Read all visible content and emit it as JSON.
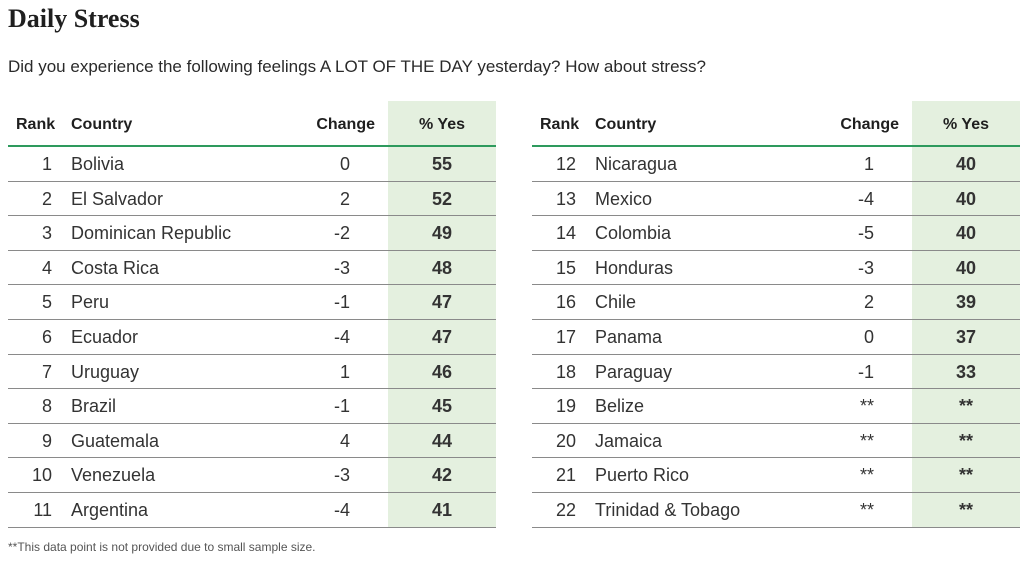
{
  "title": "Daily Stress",
  "subtitle": "Did you experience the following feelings A LOT OF THE DAY yesterday? How about stress?",
  "headers": {
    "rank": "Rank",
    "country": "Country",
    "change": "Change",
    "pct": "% Yes"
  },
  "footnote": "**This data point is not provided due to small sample size.",
  "colors": {
    "highlight": "#e4f0df",
    "header_rule": "#2e9a5d"
  },
  "chart_data": {
    "type": "table",
    "columns": [
      "Rank",
      "Country",
      "Change",
      "% Yes"
    ],
    "rows": [
      {
        "rank": "1",
        "country": "Bolivia",
        "change": "0",
        "pct": "55"
      },
      {
        "rank": "2",
        "country": "El Salvador",
        "change": "2",
        "pct": "52"
      },
      {
        "rank": "3",
        "country": "Dominican Republic",
        "change": "-2",
        "pct": "49"
      },
      {
        "rank": "4",
        "country": "Costa Rica",
        "change": "-3",
        "pct": "48"
      },
      {
        "rank": "5",
        "country": "Peru",
        "change": "-1",
        "pct": "47"
      },
      {
        "rank": "6",
        "country": "Ecuador",
        "change": "-4",
        "pct": "47"
      },
      {
        "rank": "7",
        "country": "Uruguay",
        "change": "1",
        "pct": "46"
      },
      {
        "rank": "8",
        "country": "Brazil",
        "change": "-1",
        "pct": "45"
      },
      {
        "rank": "9",
        "country": "Guatemala",
        "change": "4",
        "pct": "44"
      },
      {
        "rank": "10",
        "country": "Venezuela",
        "change": "-3",
        "pct": "42"
      },
      {
        "rank": "11",
        "country": "Argentina",
        "change": "-4",
        "pct": "41"
      },
      {
        "rank": "12",
        "country": "Nicaragua",
        "change": "1",
        "pct": "40"
      },
      {
        "rank": "13",
        "country": "Mexico",
        "change": "-4",
        "pct": "40"
      },
      {
        "rank": "14",
        "country": "Colombia",
        "change": "-5",
        "pct": "40"
      },
      {
        "rank": "15",
        "country": "Honduras",
        "change": "-3",
        "pct": "40"
      },
      {
        "rank": "16",
        "country": "Chile",
        "change": "2",
        "pct": "39"
      },
      {
        "rank": "17",
        "country": "Panama",
        "change": "0",
        "pct": "37"
      },
      {
        "rank": "18",
        "country": "Paraguay",
        "change": "-1",
        "pct": "33"
      },
      {
        "rank": "19",
        "country": "Belize",
        "change": "**",
        "pct": "**"
      },
      {
        "rank": "20",
        "country": "Jamaica",
        "change": "**",
        "pct": "**"
      },
      {
        "rank": "21",
        "country": "Puerto Rico",
        "change": "**",
        "pct": "**"
      },
      {
        "rank": "22",
        "country": "Trinidad & Tobago",
        "change": "**",
        "pct": "**"
      }
    ]
  }
}
